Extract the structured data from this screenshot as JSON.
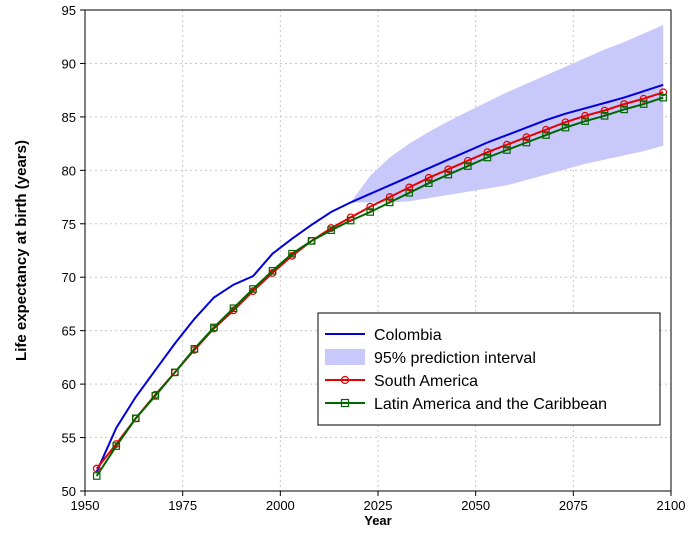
{
  "chart_data": {
    "type": "line",
    "title": "",
    "xlabel": "Year",
    "ylabel": "Life expectancy at birth (years)",
    "xlim": [
      1950,
      2100
    ],
    "ylim": [
      50,
      95
    ],
    "xticks": [
      1950,
      1975,
      2000,
      2025,
      2050,
      2075,
      2100
    ],
    "yticks": [
      50,
      55,
      60,
      65,
      70,
      75,
      80,
      85,
      90,
      95
    ],
    "grid": true,
    "legend_position": "bottom-right",
    "x": [
      1953,
      1958,
      1963,
      1968,
      1973,
      1978,
      1983,
      1988,
      1993,
      1998,
      2003,
      2008,
      2013,
      2018,
      2023,
      2028,
      2033,
      2038,
      2043,
      2048,
      2053,
      2058,
      2063,
      2068,
      2073,
      2078,
      2083,
      2088,
      2093,
      2098
    ],
    "series": [
      {
        "name": "Colombia",
        "color": "#0000dd",
        "marker": "none",
        "values": [
          51.8,
          55.9,
          58.8,
          61.3,
          63.8,
          66.1,
          68.1,
          69.3,
          70.1,
          72.2,
          73.6,
          74.9,
          76.1,
          77.0,
          77.8,
          78.6,
          79.4,
          80.2,
          81.0,
          81.8,
          82.6,
          83.3,
          84.0,
          84.7,
          85.3,
          85.8,
          86.3,
          86.8,
          87.4,
          88.0
        ]
      },
      {
        "name": "South America",
        "color": "#e60000",
        "marker": "circle",
        "values": [
          52.1,
          54.4,
          56.8,
          59.0,
          61.1,
          63.2,
          65.2,
          66.9,
          68.7,
          70.4,
          72.0,
          73.4,
          74.6,
          75.6,
          76.6,
          77.5,
          78.4,
          79.3,
          80.1,
          80.9,
          81.7,
          82.4,
          83.1,
          83.8,
          84.5,
          85.1,
          85.6,
          86.2,
          86.7,
          87.3
        ]
      },
      {
        "name": "Latin America and the Caribbean",
        "color": "#006600",
        "marker": "square",
        "values": [
          51.4,
          54.2,
          56.8,
          58.9,
          61.1,
          63.3,
          65.3,
          67.1,
          68.9,
          70.6,
          72.2,
          73.4,
          74.4,
          75.3,
          76.1,
          77.0,
          77.9,
          78.8,
          79.6,
          80.4,
          81.2,
          81.9,
          82.6,
          83.3,
          84.0,
          84.6,
          85.1,
          85.7,
          86.2,
          86.8
        ]
      }
    ],
    "interval": {
      "name": "95% prediction interval",
      "color": "#c8c8fa",
      "x": [
        2018,
        2023,
        2028,
        2033,
        2038,
        2043,
        2048,
        2053,
        2058,
        2063,
        2068,
        2073,
        2078,
        2083,
        2088,
        2093,
        2098
      ],
      "lower": [
        77.0,
        77.0,
        77.0,
        77.1,
        77.4,
        77.7,
        78.0,
        78.3,
        78.6,
        79.1,
        79.6,
        80.1,
        80.6,
        81.0,
        81.4,
        81.8,
        82.3
      ],
      "upper": [
        77.0,
        79.5,
        81.2,
        82.5,
        83.6,
        84.6,
        85.5,
        86.4,
        87.3,
        88.1,
        88.9,
        89.7,
        90.5,
        91.3,
        92.0,
        92.8,
        93.6
      ]
    }
  }
}
